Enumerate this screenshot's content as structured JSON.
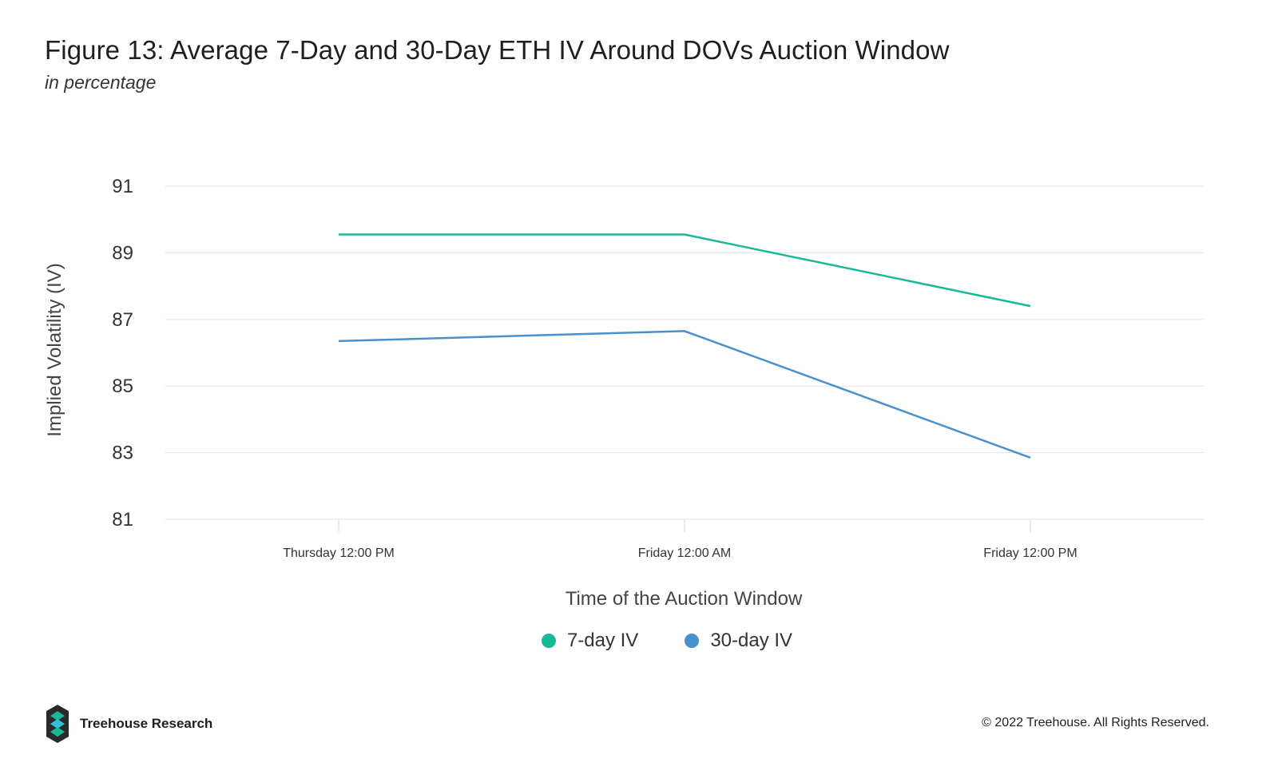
{
  "header": {
    "title": "Figure 13: Average 7-Day and 30-Day ETH IV Around DOVs Auction Window",
    "subtitle": "in percentage"
  },
  "chart_data": {
    "type": "line",
    "title": "Figure 13: Average 7-Day and 30-Day ETH IV Around DOVs Auction Window",
    "subtitle": "in percentage",
    "xlabel": "Time of the Auction Window",
    "ylabel": "Implied Volatility (IV)",
    "categories": [
      "Thursday 12:00 PM",
      "Friday 12:00 AM",
      "Friday 12:00 PM"
    ],
    "y_ticks": [
      81,
      83,
      85,
      87,
      89,
      91
    ],
    "ylim": [
      81,
      91
    ],
    "grid": "horizontal",
    "legend_position": "bottom-center",
    "series": [
      {
        "name": "7-day IV",
        "color": "#1bb896",
        "values": [
          89.55,
          89.55,
          87.4
        ]
      },
      {
        "name": "30-day IV",
        "color": "#4a90cf",
        "values": [
          86.35,
          86.65,
          82.85
        ]
      }
    ]
  },
  "footer": {
    "brand": "Treehouse Research",
    "copyright": "© 2022 Treehouse. All Rights Reserved.",
    "logo_icon": "treehouse-logo-icon"
  }
}
